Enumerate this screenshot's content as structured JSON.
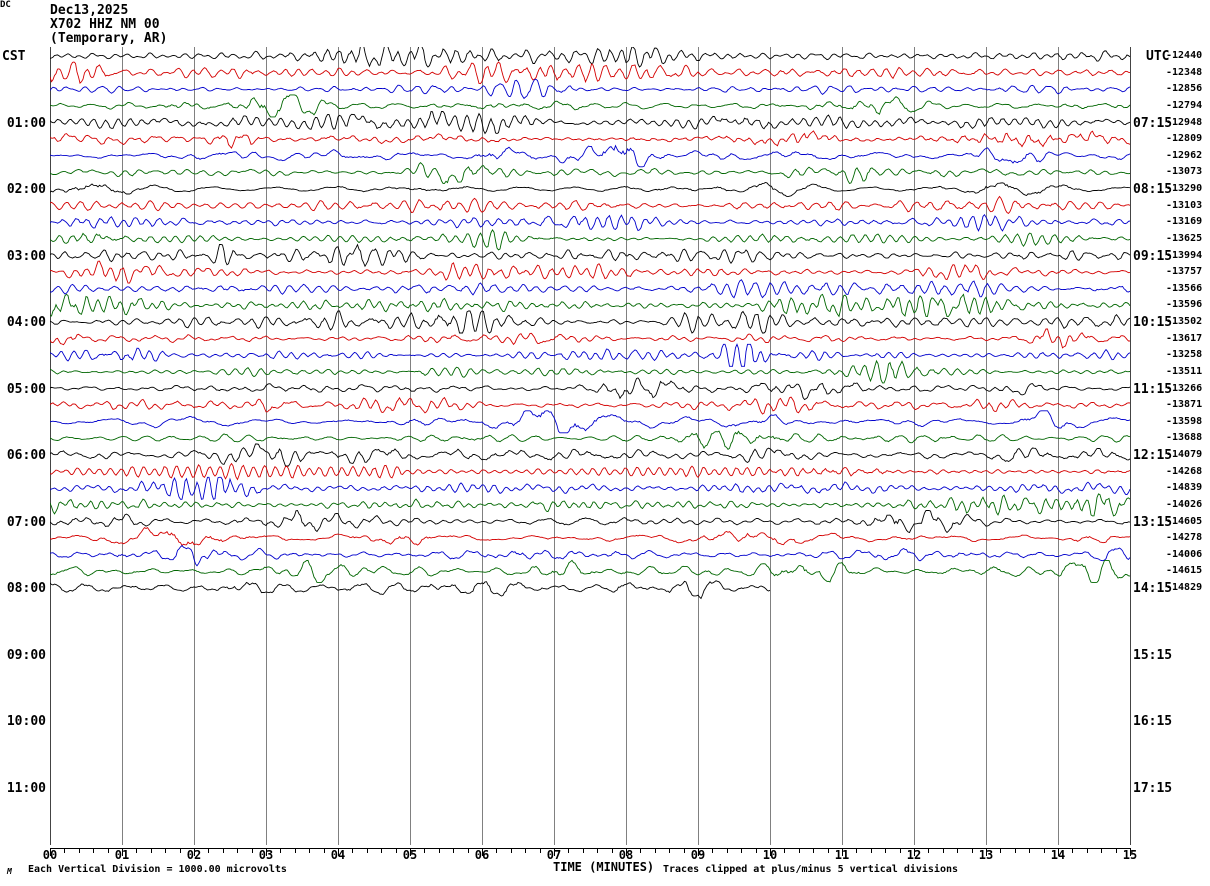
{
  "title": {
    "line1": "Dec13,2025",
    "line2": "X702 HHZ NM 00",
    "line3": "(Temporary, AR)"
  },
  "left_axis": {
    "header": "CST",
    "hour_labels": [
      "01:00",
      "02:00",
      "03:00",
      "04:00",
      "05:00",
      "06:00",
      "07:00",
      "08:00",
      "09:00",
      "10:00",
      "11:00"
    ]
  },
  "right_axis": {
    "header": "UTC",
    "dc_header": "DC",
    "hour_labels": [
      "07:15",
      "08:15",
      "09:15",
      "10:15",
      "11:15",
      "12:15",
      "13:15",
      "14:15",
      "15:15",
      "16:15",
      "17:15"
    ]
  },
  "x_axis": {
    "label": "TIME (MINUTES)",
    "tick_labels": [
      "00",
      "01",
      "02",
      "03",
      "04",
      "05",
      "06",
      "07",
      "08",
      "09",
      "10",
      "11",
      "12",
      "13",
      "14",
      "15"
    ],
    "minutes_per_line": 15,
    "minor_ticks_per_minute": 4
  },
  "footer": {
    "watermark": "M",
    "scale_note": "Each Vertical Division = 1000.00 microvolts",
    "clip_note": "Traces clipped at plus/minus 5 vertical divisions"
  },
  "chart_data": {
    "type": "line",
    "subtype": "helicorder-seismogram",
    "station": "X702 HHZ NM 00",
    "station_note": "(Temporary, AR)",
    "date": "Dec13,2025",
    "timezone_left": "CST",
    "timezone_right": "UTC",
    "rows_total": 48,
    "minutes_per_line": 15,
    "grid": true,
    "colors": {
      "trace_cycle": [
        "#000000",
        "#d40000",
        "#0000cc",
        "#006600"
      ],
      "gridline": "#808080",
      "border": "#444444"
    },
    "vertical_division_microvolts": 1000.0,
    "clip_divisions": 5,
    "traces": [
      {
        "cst": "00:00",
        "color": "black",
        "dc": -12440,
        "end_minute": 15
      },
      {
        "cst": "00:15",
        "color": "red",
        "dc": -12348,
        "end_minute": 15
      },
      {
        "cst": "00:30",
        "color": "blue",
        "dc": -12856,
        "end_minute": 15
      },
      {
        "cst": "00:45",
        "color": "green",
        "dc": -12794,
        "end_minute": 15
      },
      {
        "cst": "01:00",
        "color": "black",
        "dc": -12948,
        "end_minute": 15
      },
      {
        "cst": "01:15",
        "color": "red",
        "dc": -12809,
        "end_minute": 15
      },
      {
        "cst": "01:30",
        "color": "blue",
        "dc": -12962,
        "end_minute": 15
      },
      {
        "cst": "01:45",
        "color": "green",
        "dc": -13073,
        "end_minute": 15
      },
      {
        "cst": "02:00",
        "color": "black",
        "dc": -13290,
        "end_minute": 15
      },
      {
        "cst": "02:15",
        "color": "red",
        "dc": -13103,
        "end_minute": 15
      },
      {
        "cst": "02:30",
        "color": "blue",
        "dc": -13169,
        "end_minute": 15
      },
      {
        "cst": "02:45",
        "color": "green",
        "dc": -13625,
        "end_minute": 15
      },
      {
        "cst": "03:00",
        "color": "black",
        "dc": -13994,
        "end_minute": 15
      },
      {
        "cst": "03:15",
        "color": "red",
        "dc": -13757,
        "end_minute": 15
      },
      {
        "cst": "03:30",
        "color": "blue",
        "dc": -13566,
        "end_minute": 15
      },
      {
        "cst": "03:45",
        "color": "green",
        "dc": -13596,
        "end_minute": 15
      },
      {
        "cst": "04:00",
        "color": "black",
        "dc": -13502,
        "end_minute": 15
      },
      {
        "cst": "04:15",
        "color": "red",
        "dc": -13617,
        "end_minute": 15
      },
      {
        "cst": "04:30",
        "color": "blue",
        "dc": -13258,
        "end_minute": 15
      },
      {
        "cst": "04:45",
        "color": "green",
        "dc": -13511,
        "end_minute": 15
      },
      {
        "cst": "05:00",
        "color": "black",
        "dc": -13266,
        "end_minute": 15
      },
      {
        "cst": "05:15",
        "color": "red",
        "dc": -13871,
        "end_minute": 15
      },
      {
        "cst": "05:30",
        "color": "blue",
        "dc": -13598,
        "end_minute": 15
      },
      {
        "cst": "05:45",
        "color": "green",
        "dc": -13688,
        "end_minute": 15
      },
      {
        "cst": "06:00",
        "color": "black",
        "dc": -14079,
        "end_minute": 15
      },
      {
        "cst": "06:15",
        "color": "red",
        "dc": -14268,
        "end_minute": 15
      },
      {
        "cst": "06:30",
        "color": "blue",
        "dc": -14839,
        "end_minute": 15
      },
      {
        "cst": "06:45",
        "color": "green",
        "dc": -14026,
        "end_minute": 15
      },
      {
        "cst": "07:00",
        "color": "black",
        "dc": -14605,
        "end_minute": 15
      },
      {
        "cst": "07:15",
        "color": "red",
        "dc": -14278,
        "end_minute": 15
      },
      {
        "cst": "07:30",
        "color": "blue",
        "dc": -14006,
        "end_minute": 15
      },
      {
        "cst": "07:45",
        "color": "green",
        "dc": -14615,
        "end_minute": 15
      },
      {
        "cst": "08:00",
        "color": "black",
        "dc": -14829,
        "end_minute": 10
      }
    ]
  }
}
